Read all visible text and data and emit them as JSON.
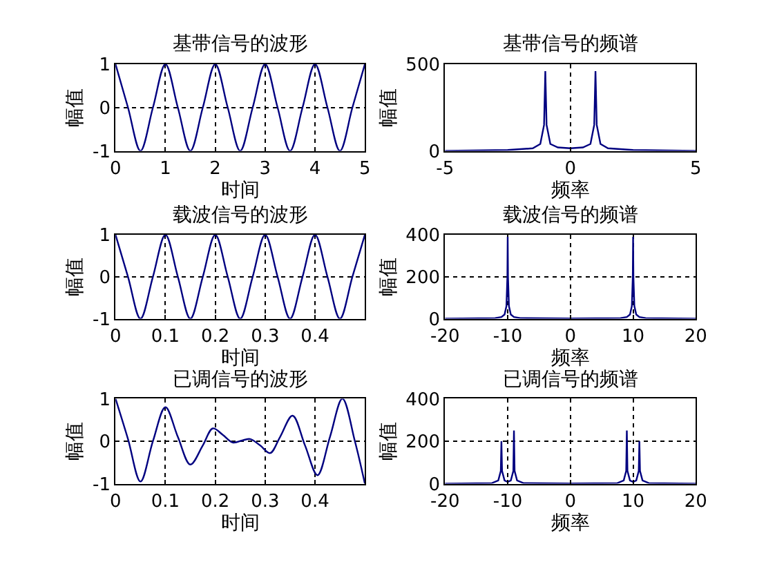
{
  "chart_data": [
    {
      "type": "line",
      "title": "基带信号的波形",
      "xlabel": "时间",
      "ylabel": "幅值",
      "xlim": [
        0,
        5
      ],
      "xticks": [
        0,
        1,
        2,
        3,
        4,
        5
      ],
      "ylim": [
        -1,
        1
      ],
      "yticks": [
        -1,
        0,
        1
      ],
      "grid": true,
      "line_style": "solid",
      "series": [
        {
          "color": "#000080",
          "x": [
            0,
            0.25,
            0.5,
            0.75,
            1,
            1.25,
            1.5,
            1.75,
            2,
            2.25,
            2.5,
            2.75,
            3,
            3.25,
            3.5,
            3.75,
            4,
            4.25,
            4.5,
            4.75,
            5
          ],
          "values": [
            1,
            0,
            -1,
            0,
            1,
            0,
            -1,
            0,
            1,
            0,
            -1,
            0,
            1,
            0,
            -1,
            0,
            1,
            0,
            -1,
            0,
            1
          ]
        }
      ]
    },
    {
      "type": "line",
      "title": "基带信号的频谱",
      "xlabel": "频率",
      "ylabel": "幅值",
      "xlim": [
        -5,
        5
      ],
      "xticks": [
        -5,
        0,
        5
      ],
      "ylim": [
        0,
        500
      ],
      "yticks": [
        0,
        500
      ],
      "grid": true,
      "line_style": "solid",
      "series": [
        {
          "color": "#000080",
          "x": [
            -5,
            -2.5,
            -1.5,
            -1.2,
            -1.05,
            -1,
            -0.95,
            -0.8,
            -0.5,
            0,
            0.5,
            0.8,
            0.95,
            1,
            1.05,
            1.2,
            1.5,
            2.5,
            5
          ],
          "values": [
            0,
            5,
            15,
            40,
            150,
            460,
            150,
            40,
            20,
            15,
            20,
            40,
            150,
            460,
            150,
            40,
            15,
            5,
            0
          ]
        }
      ]
    },
    {
      "type": "line",
      "title": "载波信号的波形",
      "xlabel": "时间",
      "ylabel": "幅值",
      "xlim": [
        0,
        0.5
      ],
      "xticks": [
        0,
        0.1,
        0.2,
        0.3,
        0.4
      ],
      "ylim": [
        -1,
        1
      ],
      "yticks": [
        -1,
        0,
        1
      ],
      "grid": true,
      "line_style": "solid",
      "series": [
        {
          "color": "#000080",
          "x": [
            0,
            0.025,
            0.05,
            0.075,
            0.1,
            0.125,
            0.15,
            0.175,
            0.2,
            0.225,
            0.25,
            0.275,
            0.3,
            0.325,
            0.35,
            0.375,
            0.4,
            0.425,
            0.45,
            0.475,
            0.5
          ],
          "values": [
            1,
            0,
            -1,
            0,
            1,
            0,
            -1,
            0,
            1,
            0,
            -1,
            0,
            1,
            0,
            -1,
            0,
            1,
            0,
            -1,
            0,
            1
          ]
        }
      ]
    },
    {
      "type": "line",
      "title": "载波信号的频谱",
      "xlabel": "频率",
      "ylabel": "幅值",
      "xlim": [
        -20,
        20
      ],
      "xticks": [
        -20,
        -10,
        0,
        10,
        20
      ],
      "ylim": [
        0,
        400
      ],
      "yticks": [
        0,
        200,
        400
      ],
      "grid": true,
      "line_style": "solid",
      "series": [
        {
          "color": "#000080",
          "x": [
            -20,
            -12,
            -11,
            -10.5,
            -10.2,
            -10.05,
            -10,
            -9.95,
            -9.8,
            -9.5,
            -9,
            -8,
            0,
            8,
            9,
            9.5,
            9.8,
            9.95,
            10,
            10.05,
            10.2,
            10.5,
            11,
            12,
            20
          ],
          "values": [
            0,
            3,
            8,
            20,
            60,
            200,
            390,
            200,
            60,
            20,
            8,
            3,
            1,
            3,
            8,
            20,
            60,
            200,
            390,
            200,
            60,
            20,
            8,
            3,
            0
          ]
        }
      ]
    },
    {
      "type": "line",
      "title": "已调信号的波形",
      "xlabel": "时间",
      "ylabel": "幅值",
      "xlim": [
        0,
        0.5
      ],
      "xticks": [
        0,
        0.1,
        0.2,
        0.3,
        0.4
      ],
      "ylim": [
        -1,
        1
      ],
      "yticks": [
        -1,
        0,
        1
      ],
      "grid": true,
      "line_style": "solid",
      "series": [
        {
          "color": "#000080",
          "x": [
            0,
            0.025,
            0.05,
            0.075,
            0.1,
            0.125,
            0.15,
            0.175,
            0.195,
            0.215,
            0.235,
            0.255,
            0.27,
            0.29,
            0.31,
            0.33,
            0.355,
            0.38,
            0.405,
            0.43,
            0.455,
            0.48,
            0.5
          ],
          "values": [
            1,
            0.05,
            -0.95,
            0,
            0.8,
            0.1,
            -0.55,
            -0.1,
            0.3,
            0.15,
            -0.03,
            0.02,
            0.05,
            -0.1,
            -0.28,
            0.1,
            0.6,
            -0.1,
            -0.8,
            0.1,
            1,
            0,
            -1
          ]
        }
      ]
    },
    {
      "type": "line",
      "title": "已调信号的频谱",
      "xlabel": "频率",
      "ylabel": "幅值",
      "xlim": [
        -20,
        20
      ],
      "xticks": [
        -20,
        -10,
        0,
        10,
        20
      ],
      "ylim": [
        0,
        400
      ],
      "yticks": [
        0,
        200,
        400
      ],
      "grid": true,
      "line_style": "solid",
      "series": [
        {
          "color": "#000080",
          "x": [
            -20,
            -12.5,
            -11.5,
            -11.1,
            -11,
            -10.9,
            -10.5,
            -10,
            -9.5,
            -9.1,
            -9,
            -8.9,
            -8.5,
            -7.5,
            0,
            7.5,
            8.5,
            8.9,
            9,
            9.1,
            9.5,
            10,
            10.5,
            10.9,
            11,
            11.1,
            11.5,
            12.5,
            20
          ],
          "values": [
            0,
            3,
            15,
            60,
            200,
            60,
            15,
            8,
            15,
            60,
            250,
            60,
            15,
            3,
            1,
            3,
            15,
            60,
            250,
            60,
            15,
            8,
            15,
            60,
            200,
            60,
            15,
            3,
            0
          ]
        }
      ]
    }
  ]
}
